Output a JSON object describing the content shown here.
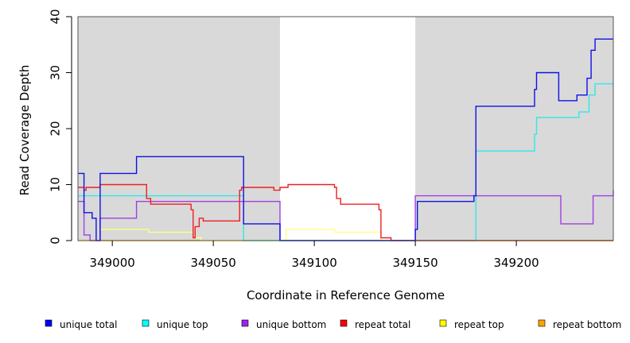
{
  "chart_data": {
    "type": "line",
    "step": true,
    "title": "",
    "xlabel": "Coordinate in Reference Genome",
    "ylabel": "Read Coverage Depth",
    "xlim": [
      348983,
      349248
    ],
    "ylim": [
      0,
      40
    ],
    "x_ticks": [
      349000,
      349050,
      349100,
      349150,
      349200
    ],
    "y_ticks": [
      0,
      10,
      20,
      30,
      40
    ],
    "grid": false,
    "legend": "bottom",
    "shaded_regions": [
      {
        "x0": 348983,
        "x1": 349083,
        "color": "#d9d9d9"
      },
      {
        "x0": 349150,
        "x1": 349248,
        "color": "#d9d9d9"
      }
    ],
    "series": [
      {
        "name": "repeat bottom",
        "color": "#ffa500",
        "legend_color": "#ffa500",
        "points": [
          [
            348983,
            0
          ],
          [
            349248,
            0
          ]
        ]
      },
      {
        "name": "repeat top",
        "color": "#ffff80",
        "legend_color": "#ffff00",
        "points": [
          [
            348983,
            0
          ],
          [
            348994,
            0
          ],
          [
            348994,
            2
          ],
          [
            349010,
            2
          ],
          [
            349010,
            2
          ],
          [
            349018,
            2
          ],
          [
            349018,
            1.5
          ],
          [
            349040,
            1.5
          ],
          [
            349040,
            0.5
          ],
          [
            349044,
            0.5
          ],
          [
            349044,
            0
          ],
          [
            349086,
            0
          ],
          [
            349086,
            2
          ],
          [
            349110,
            2
          ],
          [
            349110,
            1.5
          ],
          [
            349133,
            1.5
          ],
          [
            349133,
            0
          ],
          [
            349248,
            0
          ]
        ]
      },
      {
        "name": "unique bottom",
        "color": "#a040e0",
        "legend_color": "#a020f0",
        "points": [
          [
            348983,
            7
          ],
          [
            348986,
            7
          ],
          [
            348986,
            1
          ],
          [
            348989,
            1
          ],
          [
            348989,
            0
          ],
          [
            348994,
            0
          ],
          [
            348994,
            4
          ],
          [
            349012,
            4
          ],
          [
            349012,
            7
          ],
          [
            349083,
            7
          ],
          [
            349083,
            0
          ],
          [
            349150,
            0
          ],
          [
            349150,
            8
          ],
          [
            349222,
            8
          ],
          [
            349222,
            3
          ],
          [
            349238,
            3
          ],
          [
            349238,
            8
          ],
          [
            349248,
            8
          ],
          [
            349248,
            9
          ]
        ]
      },
      {
        "name": "unique top",
        "color": "#30e8e8",
        "legend_color": "#00ffff",
        "points": [
          [
            348983,
            8
          ],
          [
            349065,
            8
          ],
          [
            349065,
            0
          ],
          [
            349180,
            0
          ],
          [
            349180,
            16
          ],
          [
            349209,
            16
          ],
          [
            349209,
            19
          ],
          [
            349210,
            19
          ],
          [
            349210,
            22
          ],
          [
            349231,
            22
          ],
          [
            349231,
            23
          ],
          [
            349236,
            23
          ],
          [
            349236,
            26
          ],
          [
            349239,
            26
          ],
          [
            349239,
            28
          ],
          [
            349248,
            28
          ]
        ]
      },
      {
        "name": "repeat total",
        "color": "#ee2020",
        "legend_color": "#ff0000",
        "points": [
          [
            348983,
            9.5
          ],
          [
            348986,
            9.5
          ],
          [
            348986,
            9
          ],
          [
            348987,
            9
          ],
          [
            348987,
            9.5
          ],
          [
            348994,
            9.5
          ],
          [
            348994,
            10
          ],
          [
            349000,
            10
          ],
          [
            349000,
            10
          ],
          [
            349017,
            10
          ],
          [
            349017,
            7.5
          ],
          [
            349019,
            7.5
          ],
          [
            349019,
            6.5
          ],
          [
            349039,
            6.5
          ],
          [
            349039,
            5.5
          ],
          [
            349040,
            5.5
          ],
          [
            349040,
            0.5
          ],
          [
            349041,
            0.5
          ],
          [
            349041,
            2.5
          ],
          [
            349043,
            2.5
          ],
          [
            349043,
            4
          ],
          [
            349045,
            4
          ],
          [
            349045,
            3.5
          ],
          [
            349063,
            3.5
          ],
          [
            349063,
            9
          ],
          [
            349064,
            9
          ],
          [
            349064,
            9.5
          ],
          [
            349080,
            9.5
          ],
          [
            349080,
            9
          ],
          [
            349083,
            9
          ],
          [
            349083,
            9.5
          ],
          [
            349087,
            9.5
          ],
          [
            349087,
            10
          ],
          [
            349110,
            10
          ],
          [
            349110,
            9.5
          ],
          [
            349111,
            9.5
          ],
          [
            349111,
            7.5
          ],
          [
            349113,
            7.5
          ],
          [
            349113,
            6.5
          ],
          [
            349132,
            6.5
          ],
          [
            349132,
            5.5
          ],
          [
            349133,
            5.5
          ],
          [
            349133,
            0.5
          ],
          [
            349138,
            0.5
          ],
          [
            349138,
            0
          ],
          [
            349248,
            0
          ]
        ]
      },
      {
        "name": "unique total",
        "color": "#1010e8",
        "legend_color": "#0000ff",
        "points": [
          [
            348983,
            12
          ],
          [
            348986,
            12
          ],
          [
            348986,
            5
          ],
          [
            348990,
            5
          ],
          [
            348990,
            4
          ],
          [
            348992,
            4
          ],
          [
            348992,
            0
          ],
          [
            348994,
            0
          ],
          [
            348994,
            12
          ],
          [
            349012,
            12
          ],
          [
            349012,
            15
          ],
          [
            349065,
            15
          ],
          [
            349065,
            3
          ],
          [
            349083,
            3
          ],
          [
            349083,
            0
          ],
          [
            349150,
            0
          ],
          [
            349150,
            2
          ],
          [
            349151,
            2
          ],
          [
            349151,
            7
          ],
          [
            349179,
            7
          ],
          [
            349179,
            8
          ],
          [
            349180,
            8
          ],
          [
            349180,
            24
          ],
          [
            349209,
            24
          ],
          [
            349209,
            27
          ],
          [
            349210,
            27
          ],
          [
            349210,
            30
          ],
          [
            349221,
            30
          ],
          [
            349221,
            25
          ],
          [
            349230,
            25
          ],
          [
            349230,
            26
          ],
          [
            349235,
            26
          ],
          [
            349235,
            29
          ],
          [
            349237,
            29
          ],
          [
            349237,
            34
          ],
          [
            349239,
            34
          ],
          [
            349239,
            36
          ],
          [
            349248,
            36
          ]
        ]
      }
    ],
    "legend_order": [
      "unique total",
      "unique top",
      "unique bottom",
      "repeat total",
      "repeat top",
      "repeat bottom"
    ]
  }
}
